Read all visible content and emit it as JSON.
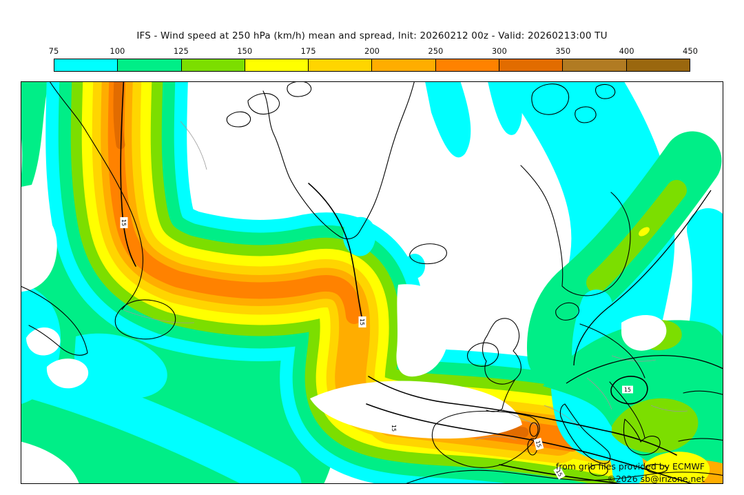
{
  "title": "IFS - Wind speed at 250 hPa (km/h) mean and spread, Init: 20260212 00z - Valid: 20260213:00 TU",
  "colorbar": {
    "tick_labels": [
      "75",
      "100",
      "125",
      "150",
      "175",
      "200",
      "250",
      "300",
      "350",
      "400",
      "450"
    ],
    "bands": [
      {
        "from": 75,
        "to": 100,
        "color": "#00FFFF"
      },
      {
        "from": 100,
        "to": 125,
        "color": "#00EE87"
      },
      {
        "from": 125,
        "to": 150,
        "color": "#7CDE00"
      },
      {
        "from": 150,
        "to": 175,
        "color": "#FFFF00"
      },
      {
        "from": 175,
        "to": 200,
        "color": "#FFD500"
      },
      {
        "from": 200,
        "to": 250,
        "color": "#FFAD00"
      },
      {
        "from": 250,
        "to": 300,
        "color": "#FF8200"
      },
      {
        "from": 300,
        "to": 350,
        "color": "#E26C00"
      },
      {
        "from": 350,
        "to": 400,
        "color": "#B17B22"
      },
      {
        "from": 400,
        "to": 450,
        "color": "#9A670E"
      }
    ],
    "unit": "km/h"
  },
  "map": {
    "spread_contour_label": "15",
    "attribution_line1": "from grib files provided by ECMWF",
    "attribution_line2": "©2026 sb@irizone.net",
    "background": "#ffffff",
    "coastline_color": "#000000",
    "border_color": "#9a9a9a"
  }
}
